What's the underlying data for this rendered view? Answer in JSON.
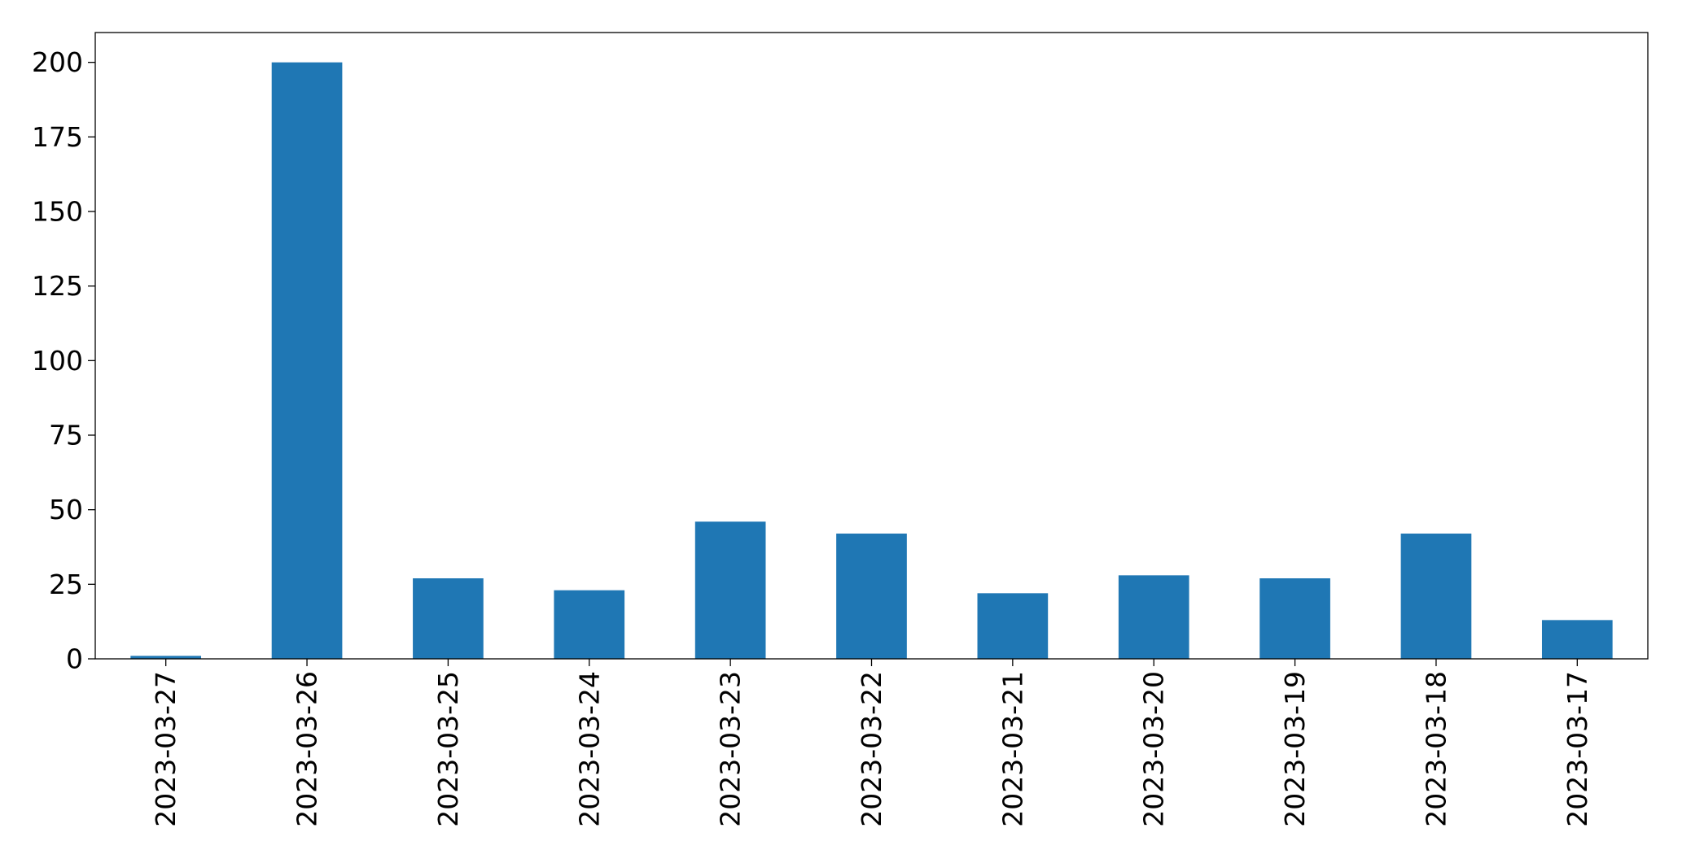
{
  "chart_data": {
    "type": "bar",
    "title": "",
    "xlabel": "",
    "ylabel": "",
    "categories": [
      "2023-03-27",
      "2023-03-26",
      "2023-03-25",
      "2023-03-24",
      "2023-03-23",
      "2023-03-22",
      "2023-03-21",
      "2023-03-20",
      "2023-03-19",
      "2023-03-18",
      "2023-03-17"
    ],
    "values": [
      1,
      200,
      27,
      23,
      46,
      42,
      22,
      28,
      27,
      42,
      13
    ],
    "ylim": [
      0,
      210
    ],
    "yticks": [
      0,
      25,
      50,
      75,
      100,
      125,
      150,
      175,
      200
    ],
    "grid": false,
    "legend": "none",
    "bar_color": "#1f77b4"
  }
}
